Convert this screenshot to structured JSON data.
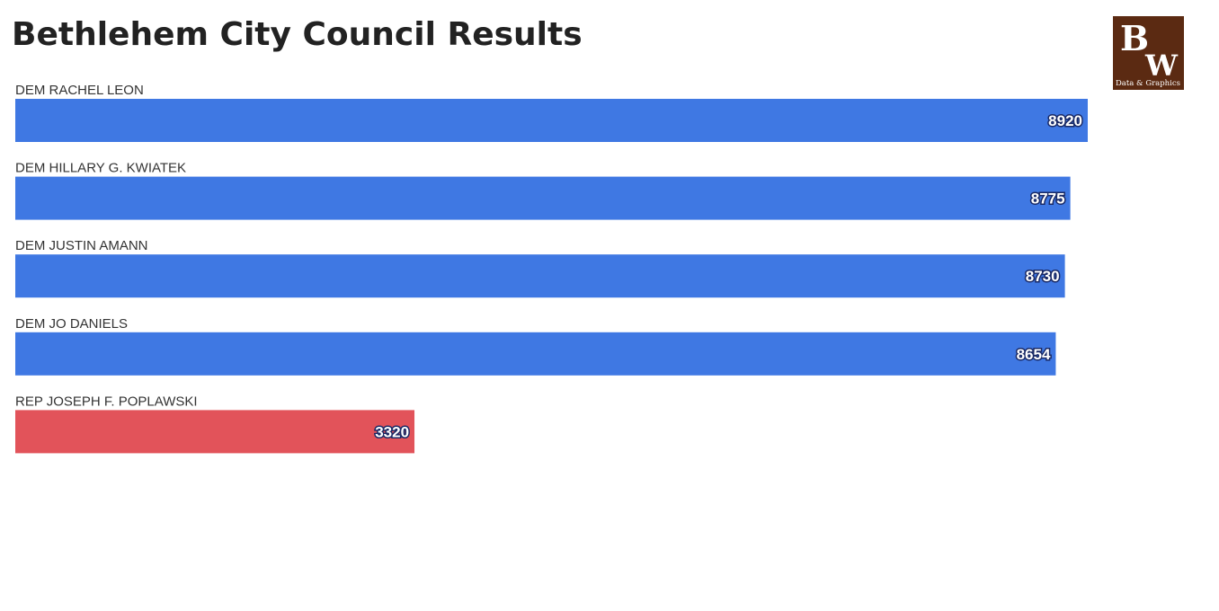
{
  "chart_data": {
    "type": "bar",
    "orientation": "horizontal",
    "title": "Bethlehem City Council Results",
    "categories": [
      "DEM RACHEL LEON",
      "DEM HILLARY G. KWIATEK",
      "DEM JUSTIN AMANN",
      "DEM JO DANIELS",
      "REP JOSEPH F. POPLAWSKI"
    ],
    "values": [
      8920,
      8775,
      8730,
      8654,
      3320
    ],
    "colors": [
      "#3f78e3",
      "#3f78e3",
      "#3f78e3",
      "#3f78e3",
      "#e2535a"
    ]
  },
  "logo": {
    "letters": [
      "B",
      "W"
    ],
    "caption": "Data & Graphics"
  }
}
